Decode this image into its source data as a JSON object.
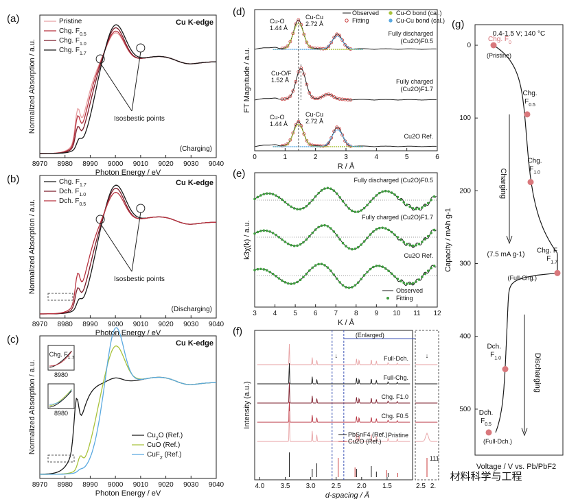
{
  "figure": {
    "watermark": "材料科学与工程"
  },
  "colors": {
    "black": "#1a1a1a",
    "dark_red": "#7b1c2a",
    "mid_red": "#b8323f",
    "pink": "#e7a1a3",
    "olive": "#a8c23a",
    "blue": "#5aa9e0",
    "green": "#3f9e3f",
    "red_circle": "#c83a3a",
    "marker": "#d9787c"
  },
  "chart_data": [
    {
      "id": "a",
      "panel_label": "(a)",
      "type": "line",
      "title": "Cu K-edge",
      "note": "(Charging)",
      "xlabel": "Photon Energy / eV",
      "ylabel": "Normalized Absorption / a.u.",
      "xlim": [
        8970,
        9040
      ],
      "xticks": [
        "8970",
        "8980",
        "8990",
        "9000",
        "9010",
        "9020",
        "9030",
        "9040"
      ],
      "series": [
        {
          "name": "Pristine"
        },
        {
          "name": "Chg. F0.5"
        },
        {
          "name": "Chg. F1.0"
        },
        {
          "name": "Chg. F1.7"
        }
      ],
      "legend": [
        {
          "base": "Pristine",
          "sub": ""
        },
        {
          "base": "Chg. F",
          "sub": "0.5"
        },
        {
          "base": "Chg. F",
          "sub": "1.0"
        },
        {
          "base": "Chg. F",
          "sub": "1.7"
        }
      ],
      "annotation": "Isosbestic points",
      "isosbestic_x": [
        8994,
        9010
      ]
    },
    {
      "id": "b",
      "panel_label": "(b)",
      "type": "line",
      "title": "Cu K-edge",
      "note": "(Discharging)",
      "xlabel": "Photon Energy / eV",
      "ylabel": "Normalized Absorption / a.u.",
      "xlim": [
        8970,
        9040
      ],
      "xticks": [
        "8970",
        "8980",
        "8990",
        "9000",
        "9010",
        "9020",
        "9030",
        "9040"
      ],
      "series": [
        {
          "name": "Chg. F1.7"
        },
        {
          "name": "Dch. F1.0"
        },
        {
          "name": "Dch. F0.5"
        }
      ],
      "legend": [
        {
          "base": "Chg. F",
          "sub": "1.7"
        },
        {
          "base": "Dch. F",
          "sub": "1.0"
        },
        {
          "base": "Dch. F",
          "sub": "0.5"
        }
      ],
      "annotation": "Isosbestic points",
      "isosbestic_x": [
        8994,
        9010
      ]
    },
    {
      "id": "c",
      "panel_label": "(c)",
      "type": "line",
      "title": "Cu K-edge",
      "xlabel": "Photon Energy / eV",
      "ylabel": "Normalized Absorption / a.u.",
      "xlim": [
        8970,
        9040
      ],
      "xticks": [
        "8970",
        "8980",
        "8990",
        "9000",
        "9010",
        "9020",
        "9030",
        "9040"
      ],
      "series": [
        {
          "name": "Cu2O (Ref.)"
        },
        {
          "name": "CuO (Ref.)"
        },
        {
          "name": "CuF2 (Ref.)"
        }
      ],
      "legend": [
        {
          "base": "Cu",
          "sub": "2",
          "tail": "O (Ref.)"
        },
        {
          "base": "CuO (Ref.)",
          "sub": "",
          "tail": ""
        },
        {
          "base": "CuF",
          "sub": "2",
          "tail": " (Ref.)"
        }
      ],
      "insets": [
        {
          "label": "Chg. F",
          "sub": "1.7",
          "tick": "8980"
        },
        {
          "label": "",
          "sub": "",
          "tick": "8980"
        }
      ]
    },
    {
      "id": "d",
      "panel_label": "(d)",
      "type": "line",
      "xlabel": "R / Å",
      "ylabel": "FT Magnitude / a.u.",
      "xlim": [
        0,
        6
      ],
      "xticks": [
        "0",
        "1",
        "2",
        "3",
        "4",
        "5",
        "6"
      ],
      "legend": [
        "Observed",
        "Fitting",
        "Cu-O bond (cal.)",
        "Cu-Cu bond (cal.)"
      ],
      "traces": [
        {
          "label": "Fully discharged",
          "sub_label": "(Cu2O)F0.5"
        },
        {
          "label": "Fully charged",
          "sub_label": "(Cu2O)F1.7"
        },
        {
          "label": "Cu2O Ref."
        }
      ],
      "peaks": [
        {
          "name": "Cu-O",
          "r": "1.44 Å"
        },
        {
          "name": "Cu-Cu",
          "r": "2.72 Å"
        },
        {
          "name": "Cu-O/F",
          "r": "1.52 Å"
        },
        {
          "name": "Cu-O",
          "r": "1.44 Å"
        },
        {
          "name": "Cu-Cu",
          "r": "2.72 Å"
        }
      ]
    },
    {
      "id": "e",
      "panel_label": "(e)",
      "type": "line",
      "xlabel": "K / Å",
      "ylabel": "k3χ(k) / a.u.",
      "xlim": [
        3,
        12
      ],
      "xticks": [
        "3",
        "4",
        "5",
        "6",
        "7",
        "8",
        "9",
        "10",
        "11",
        "12"
      ],
      "traces": [
        "Fully discharged (Cu2O)F0.5",
        "Fully charged (Cu2O)F1.7",
        "Cu2O Ref."
      ],
      "legend": [
        "Observed",
        "Fitting"
      ]
    },
    {
      "id": "f",
      "panel_label": "(f)",
      "type": "line",
      "xlabel": "d-spacing / Å",
      "ylabel": "Intensity (a.u.)",
      "xlim": [
        4.0,
        1.0
      ],
      "xticks": [
        "4.0",
        "3.5",
        "3.0",
        "2.5",
        "2.0",
        "1.5"
      ],
      "xticks_zoom": [
        "2.5",
        "2."
      ],
      "enlarged_label": "(Enlarged)",
      "zoom_peak": "111",
      "traces": [
        "Full-Dch.",
        "Full-Chg.",
        "Chg. F1.0",
        "Chg. F0.5",
        "Pristine"
      ],
      "refs": [
        "PbSnF4 (Ref.)",
        "Cu2O (Ref.)"
      ]
    },
    {
      "id": "g",
      "panel_label": "(g)",
      "type": "line",
      "condition": "0.4-1.5 V; 140 °C",
      "xlabel": "Voltage / V vs. Pb/PbF2",
      "ylabel": "Capacity / mAh g-1",
      "ylim": [
        0,
        550
      ],
      "yticks": [
        "0",
        "100",
        "200",
        "300",
        "400",
        "500"
      ],
      "rate": "(7.5 mA g-1)",
      "arrows": [
        "Charging",
        "Discharging"
      ],
      "states": [
        {
          "base": "Chg. F",
          "sub": "0",
          "note": "(Pristine)",
          "capacity": 0
        },
        {
          "base": "Chg. F",
          "sub": "0.5",
          "note": "",
          "capacity": 95
        },
        {
          "base": "Chg. F",
          "sub": "1.0",
          "note": "",
          "capacity": 188
        },
        {
          "base": "Chg. F",
          "sub": "1.7",
          "note": "(Full-Chg.)",
          "capacity": 313
        },
        {
          "base": "Dch. F",
          "sub": "1.0",
          "note": "",
          "capacity": 445
        },
        {
          "base": "Dch. F",
          "sub": "0.5",
          "note": "(Full-Dch.)",
          "capacity": 532
        }
      ]
    }
  ]
}
